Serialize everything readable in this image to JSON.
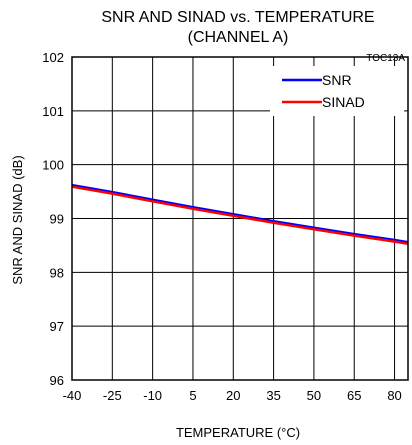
{
  "chart_data": {
    "type": "line",
    "title": "SNR AND SINAD vs. TEMPERATURE",
    "subtitle": "(CHANNEL A)",
    "figure_id": "TOC13A",
    "xlabel": "TEMPERATURE (°C)",
    "ylabel": "SNR AND SINAD  (dB)",
    "xlim": [
      -40,
      85
    ],
    "ylim": [
      96,
      102
    ],
    "x_ticks": [
      -40,
      -25,
      -10,
      5,
      20,
      35,
      50,
      65,
      80
    ],
    "y_ticks": [
      96,
      97,
      98,
      99,
      100,
      101,
      102
    ],
    "grid": true,
    "legend_position": "top-right",
    "x": [
      -40,
      -25,
      -10,
      5,
      20,
      35,
      50,
      65,
      80,
      85
    ],
    "series": [
      {
        "name": "SNR",
        "color": "#0000ff",
        "values": [
          99.62,
          99.49,
          99.35,
          99.21,
          99.08,
          98.95,
          98.83,
          98.71,
          98.6,
          98.56
        ]
      },
      {
        "name": "SINAD",
        "color": "#ff0000",
        "values": [
          99.59,
          99.46,
          99.32,
          99.18,
          99.05,
          98.92,
          98.8,
          98.68,
          98.57,
          98.53
        ]
      }
    ]
  }
}
